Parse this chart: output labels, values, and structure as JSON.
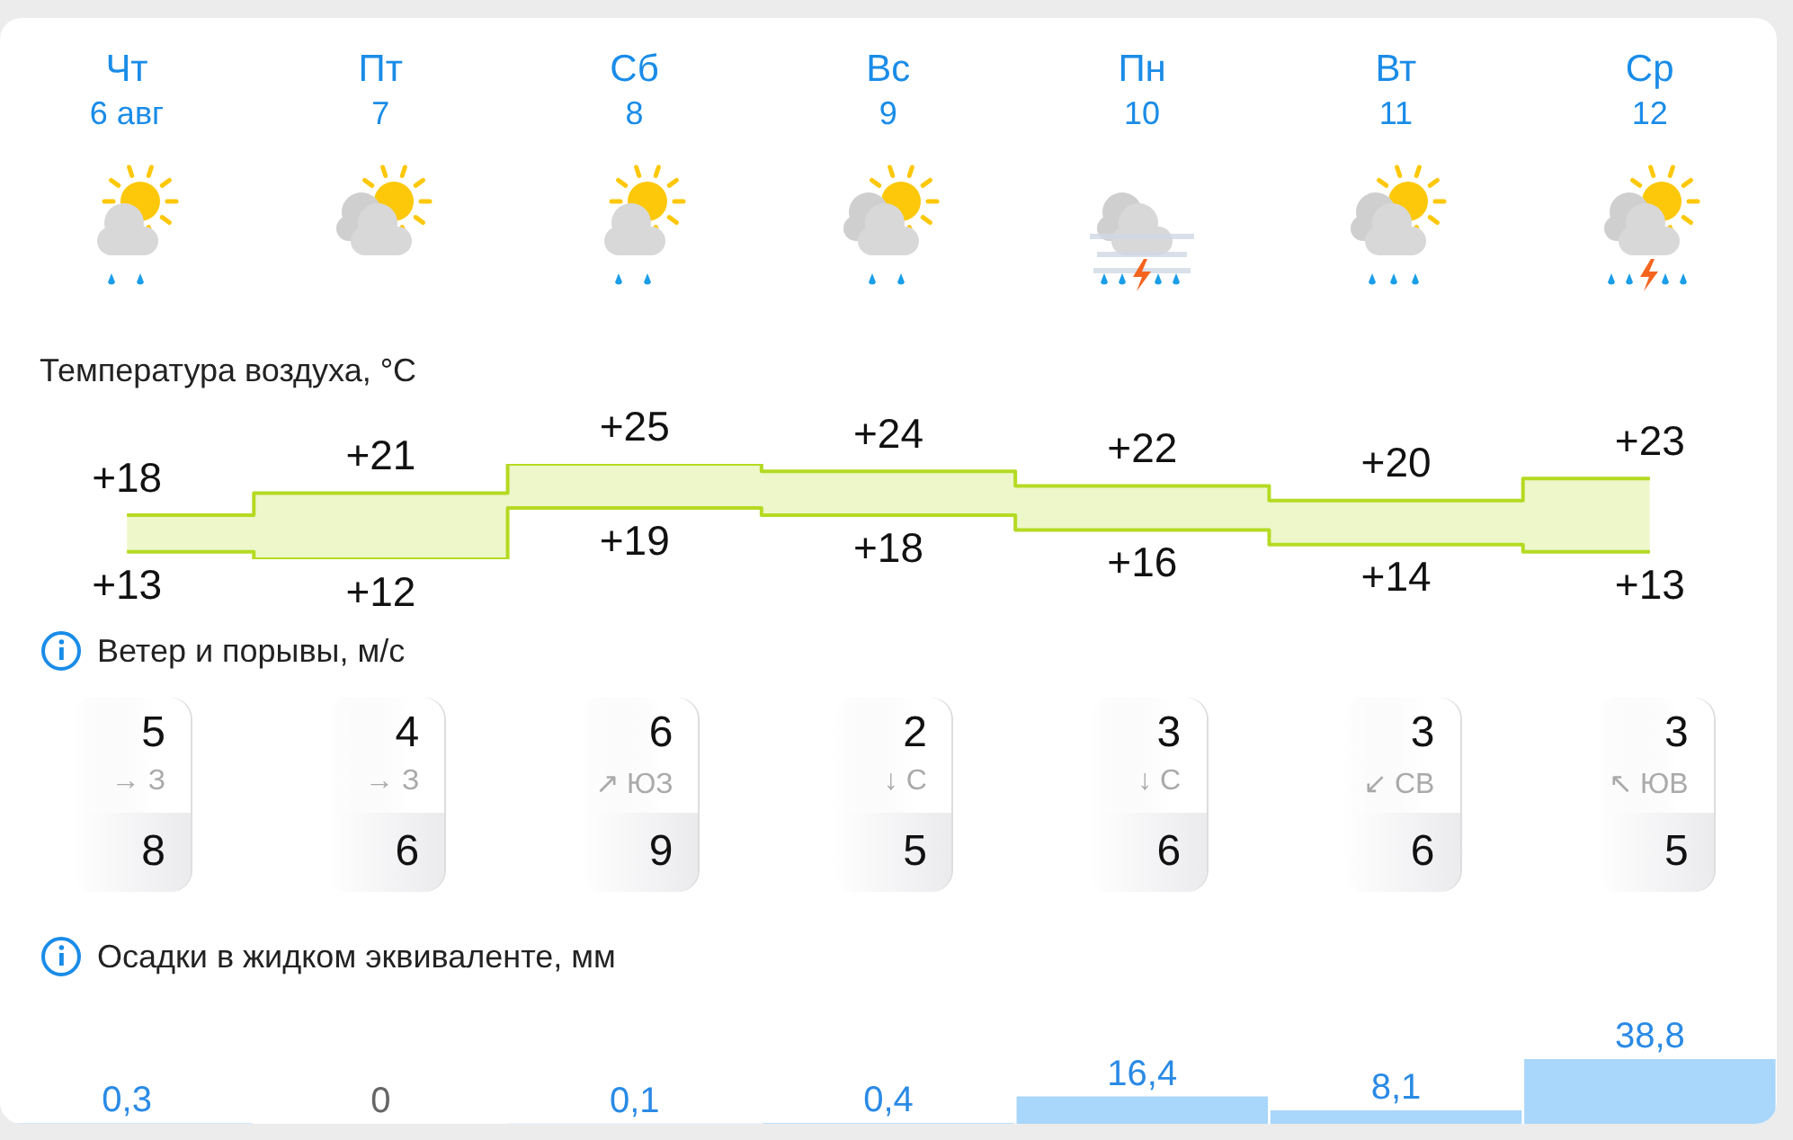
{
  "chart_data": [
    {
      "type": "step",
      "title": "Температура воздуха, °C",
      "categories": [
        "Чт\n6 авг",
        "Пт\n7",
        "Сб\n8",
        "Вс\n9",
        "Пн\n10",
        "Вт\n11",
        "Ср\n12"
      ],
      "series": [
        {
          "color": "#b5da22",
          "values": [
            18,
            21,
            25,
            24,
            22,
            20,
            23
          ],
          "value_labels": [
            "+18",
            "+21",
            "+25",
            "+24",
            "+22",
            "+20",
            "+23"
          ],
          "lower": [
            13,
            12,
            19,
            18,
            16,
            14,
            13
          ],
          "upper": [
            18,
            21,
            25,
            24,
            22,
            20,
            23
          ]
        },
        {
          "color": "#b5da22",
          "values": [
            13,
            12,
            19,
            18,
            16,
            14,
            13
          ],
          "value_labels": [
            "+13",
            "+12",
            "+19",
            "+18",
            "+16",
            "+14",
            "+13"
          ]
        }
      ]
    },
    {
      "type": "other",
      "title": "Ветер и порывы, м/с",
      "categories": [
        "→ З",
        "→ З",
        "↗ ЮЗ",
        "↓ С",
        "↓ С",
        "↙ СВ",
        "↖ ЮВ"
      ],
      "data_labels": true,
      "series": [
        {
          "values": [
            5,
            4,
            6,
            2,
            3,
            3,
            3
          ]
        },
        {
          "values": [
            8,
            6,
            9,
            5,
            6,
            6,
            5
          ]
        }
      ]
    },
    {
      "type": "bar",
      "title": "Осадки в жидком эквиваленте, мм",
      "categories": [
        null,
        null,
        null,
        null,
        null,
        null,
        null
      ],
      "values": [
        0.3,
        0,
        0.1,
        0.4,
        16.4,
        8.1,
        38.8
      ],
      "value_labels": [
        "0,3",
        "0",
        "0,1",
        "0,4",
        "16,4",
        "8,1",
        "38,8"
      ],
      "color": "#a9d6fb"
    }
  ]
}
